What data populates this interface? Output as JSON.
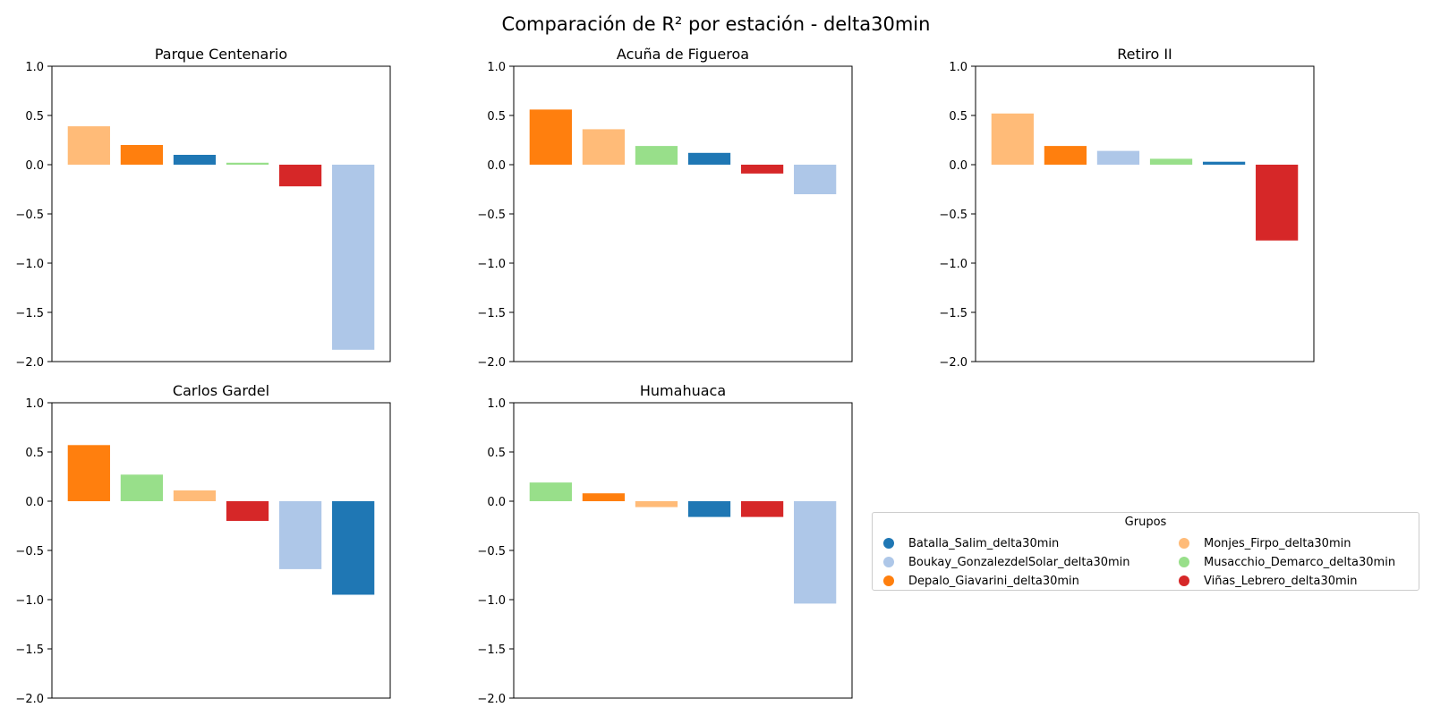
{
  "chart_data": {
    "type": "bar",
    "title": "Comparación de R² por estación - delta30min",
    "ylim": [
      -2.0,
      1.0
    ],
    "yticks": [
      "1.0",
      "0.5",
      "0.0",
      "−0.5",
      "−1.0",
      "−1.5",
      "−2.0"
    ],
    "ytick_values": [
      1.0,
      0.5,
      0.0,
      -0.5,
      -1.0,
      -1.5,
      -2.0
    ],
    "grid": false,
    "legend": {
      "title": "Grupos",
      "placement": "lower-right",
      "entries": [
        {
          "name": "Batalla_Salim_delta30min",
          "color": "#1f77b4"
        },
        {
          "name": "Boukay_GonzalezdelSolar_delta30min",
          "color": "#aec7e8"
        },
        {
          "name": "Depalo_Giavarini_delta30min",
          "color": "#ff7f0e"
        },
        {
          "name": "Monjes_Firpo_delta30min",
          "color": "#ffbb78"
        },
        {
          "name": "Musacchio_Demarco_delta30min",
          "color": "#98df8a"
        },
        {
          "name": "Viñas_Lebrero_delta30min",
          "color": "#d62728"
        }
      ]
    },
    "panels": [
      {
        "title": "Parque Centenario",
        "bars": [
          {
            "group": "Monjes_Firpo_delta30min",
            "value": 0.39
          },
          {
            "group": "Depalo_Giavarini_delta30min",
            "value": 0.2
          },
          {
            "group": "Batalla_Salim_delta30min",
            "value": 0.1
          },
          {
            "group": "Musacchio_Demarco_delta30min",
            "value": 0.02
          },
          {
            "group": "Viñas_Lebrero_delta30min",
            "value": -0.22
          },
          {
            "group": "Boukay_GonzalezdelSolar_delta30min",
            "value": -1.88
          }
        ]
      },
      {
        "title": "Acuña de Figueroa",
        "bars": [
          {
            "group": "Depalo_Giavarini_delta30min",
            "value": 0.56
          },
          {
            "group": "Monjes_Firpo_delta30min",
            "value": 0.36
          },
          {
            "group": "Musacchio_Demarco_delta30min",
            "value": 0.19
          },
          {
            "group": "Batalla_Salim_delta30min",
            "value": 0.12
          },
          {
            "group": "Viñas_Lebrero_delta30min",
            "value": -0.09
          },
          {
            "group": "Boukay_GonzalezdelSolar_delta30min",
            "value": -0.3
          }
        ]
      },
      {
        "title": "Retiro II",
        "bars": [
          {
            "group": "Monjes_Firpo_delta30min",
            "value": 0.52
          },
          {
            "group": "Depalo_Giavarini_delta30min",
            "value": 0.19
          },
          {
            "group": "Boukay_GonzalezdelSolar_delta30min",
            "value": 0.14
          },
          {
            "group": "Musacchio_Demarco_delta30min",
            "value": 0.06
          },
          {
            "group": "Batalla_Salim_delta30min",
            "value": 0.03
          },
          {
            "group": "Viñas_Lebrero_delta30min",
            "value": -0.77
          }
        ]
      },
      {
        "title": "Carlos Gardel",
        "bars": [
          {
            "group": "Depalo_Giavarini_delta30min",
            "value": 0.57
          },
          {
            "group": "Musacchio_Demarco_delta30min",
            "value": 0.27
          },
          {
            "group": "Monjes_Firpo_delta30min",
            "value": 0.11
          },
          {
            "group": "Viñas_Lebrero_delta30min",
            "value": -0.2
          },
          {
            "group": "Boukay_GonzalezdelSolar_delta30min",
            "value": -0.69
          },
          {
            "group": "Batalla_Salim_delta30min",
            "value": -0.95
          }
        ]
      },
      {
        "title": "Humahuaca",
        "bars": [
          {
            "group": "Musacchio_Demarco_delta30min",
            "value": 0.19
          },
          {
            "group": "Depalo_Giavarini_delta30min",
            "value": 0.08
          },
          {
            "group": "Monjes_Firpo_delta30min",
            "value": -0.06
          },
          {
            "group": "Batalla_Salim_delta30min",
            "value": -0.16
          },
          {
            "group": "Viñas_Lebrero_delta30min",
            "value": -0.16
          },
          {
            "group": "Boukay_GonzalezdelSolar_delta30min",
            "value": -1.04
          }
        ]
      }
    ]
  }
}
